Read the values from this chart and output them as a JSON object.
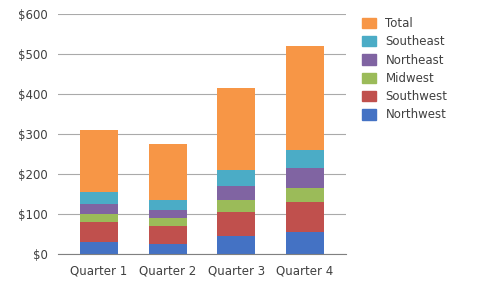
{
  "categories": [
    "Quarter 1",
    "Quarter 2",
    "Quarter 3",
    "Quarter 4"
  ],
  "series": {
    "Northwest": [
      30,
      25,
      45,
      55
    ],
    "Southwest": [
      50,
      45,
      60,
      75
    ],
    "Midwest": [
      20,
      20,
      30,
      35
    ],
    "Northeast": [
      25,
      20,
      35,
      50
    ],
    "Southeast": [
      30,
      27,
      40,
      45
    ],
    "Total": [
      155,
      138,
      205,
      260
    ]
  },
  "colors": {
    "Northwest": "#4472C4",
    "Southwest": "#C0504D",
    "Midwest": "#9BBB59",
    "Northeast": "#8064A2",
    "Southeast": "#4BACC6",
    "Total": "#F79646"
  },
  "legend_order": [
    "Total",
    "Southeast",
    "Northeast",
    "Midwest",
    "Southwest",
    "Northwest"
  ],
  "ylim": [
    0,
    600
  ],
  "yticks": [
    0,
    100,
    200,
    300,
    400,
    500,
    600
  ],
  "bg_color": "#FFFFFF",
  "plot_bg_color": "#FFFFFF",
  "grid_color": "#AAAAAA",
  "bar_width": 0.55
}
